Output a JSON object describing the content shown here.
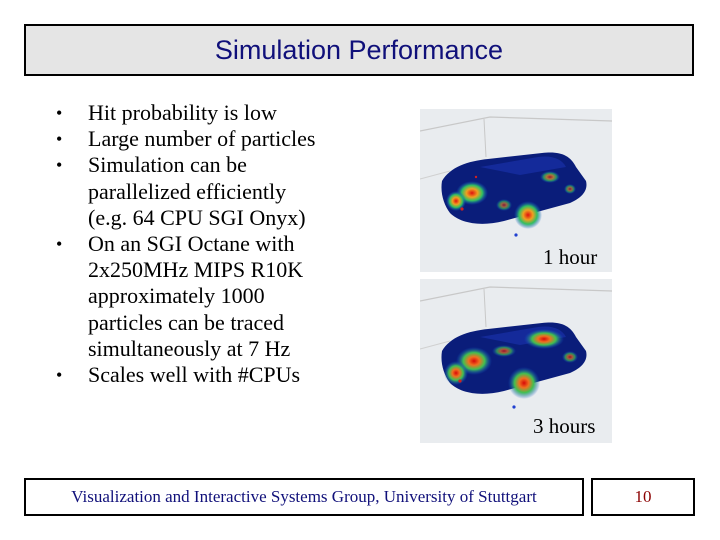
{
  "title": "Simulation Performance",
  "bullets": [
    "Hit probability is low",
    "Large number of particles",
    "Simulation can be parallelized efficiently (e.g. 64 CPU SGI Onyx)",
    "On an SGI Octane with 2x250MHz MIPS R10K approximately 1000 particles can be traced simultaneously at 7 Hz",
    "Scales well with #CPUs"
  ],
  "bullet_lines": [
    [
      "Hit probability is low"
    ],
    [
      "Large number of particles"
    ],
    [
      "Simulation can be",
      "parallelized efficiently",
      "(e.g. 64 CPU SGI Onyx)"
    ],
    [
      "On an SGI Octane with",
      "2x250MHz MIPS R10K",
      "approximately 1000",
      "particles can be traced",
      "simultaneously at 7 Hz"
    ],
    [
      "Scales well with #CPUs"
    ]
  ],
  "bullet_symbol": "•",
  "images": [
    {
      "caption": "1 hour"
    },
    {
      "caption": "3 hours"
    }
  ],
  "footer": {
    "text": "Visualization and Interactive Systems Group, University of Stuttgart",
    "page_number": "10"
  },
  "colors": {
    "title_text": "#10107a",
    "title_bg": "#e5e5e5",
    "page_number": "#8b0000"
  }
}
